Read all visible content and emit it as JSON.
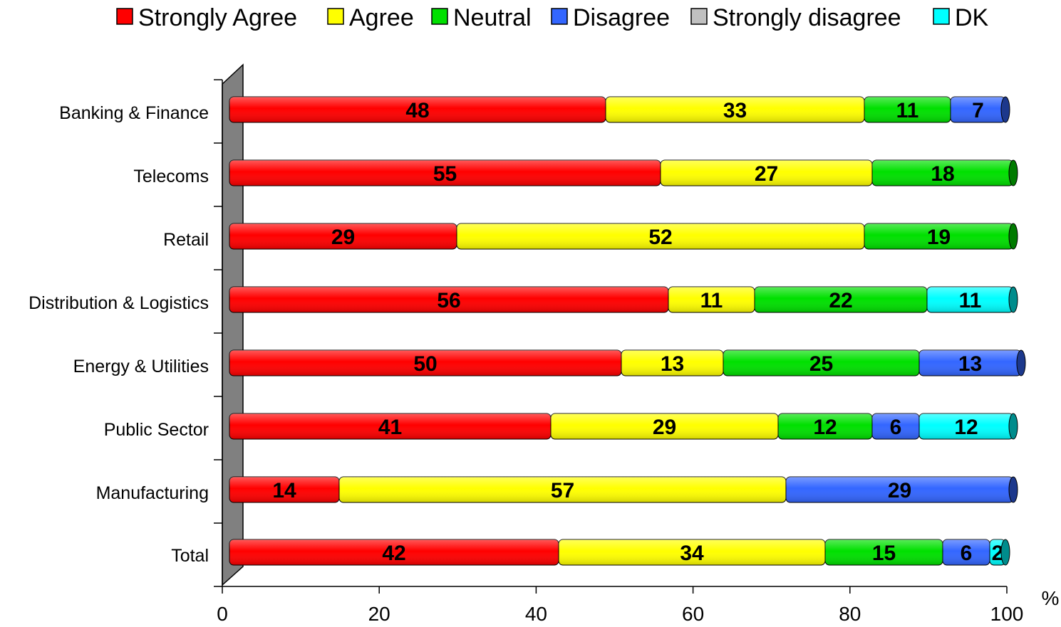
{
  "chart_data": {
    "type": "bar",
    "orientation": "horizontal",
    "stacked": true,
    "title": "",
    "xlabel": "",
    "unit_label": "%",
    "ylabel": "",
    "xlim": [
      0,
      100
    ],
    "x_ticks": [
      0,
      20,
      40,
      60,
      80,
      100
    ],
    "grid": false,
    "legend_position": "top",
    "categories": [
      "Banking & Finance",
      "Telecoms",
      "Retail",
      "Distribution & Logistics",
      "Energy & Utilities",
      "Public Sector",
      "Manufacturing",
      "Total"
    ],
    "series": [
      {
        "name": "Strongly Agree",
        "color": "#ff0000",
        "values": [
          48,
          55,
          29,
          56,
          50,
          41,
          14,
          42
        ]
      },
      {
        "name": "Agree",
        "color": "#ffff00",
        "values": [
          33,
          27,
          52,
          11,
          13,
          29,
          57,
          34
        ]
      },
      {
        "name": "Neutral",
        "color": "#00e000",
        "values": [
          11,
          18,
          19,
          22,
          25,
          12,
          0,
          15
        ]
      },
      {
        "name": "Disagree",
        "color": "#3366ff",
        "values": [
          7,
          0,
          0,
          0,
          13,
          6,
          29,
          6
        ]
      },
      {
        "name": "Strongly disagree",
        "color": "#c0c0c0",
        "values": [
          0,
          0,
          0,
          0,
          0,
          0,
          0,
          0
        ]
      },
      {
        "name": "DK",
        "color": "#00ffff",
        "values": [
          0,
          0,
          0,
          11,
          0,
          12,
          0,
          2
        ]
      }
    ]
  }
}
